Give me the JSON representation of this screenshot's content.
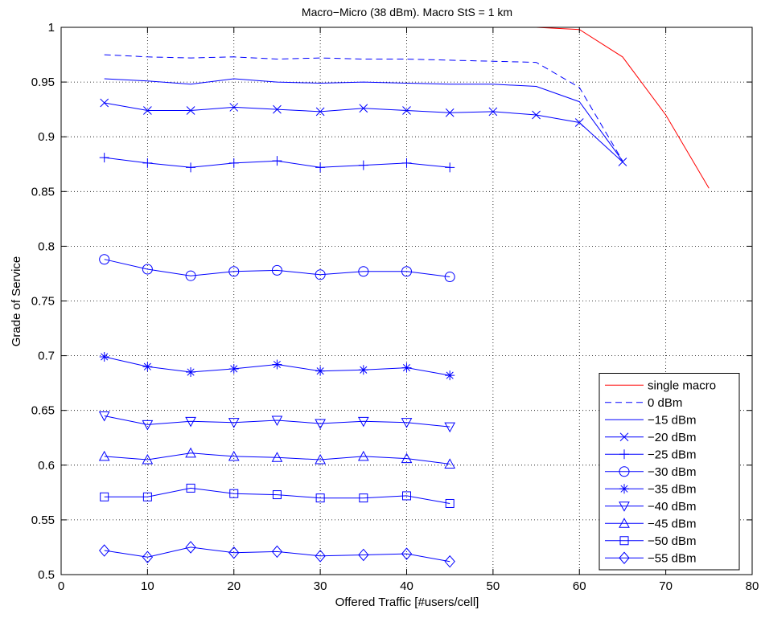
{
  "chart_data": {
    "type": "line",
    "title": "Macro−Micro (38 dBm). Macro StS = 1 km",
    "xlabel": "Offered Traffic [#users/cell]",
    "ylabel": "Grade of Service",
    "xlim": [
      0,
      80
    ],
    "ylim": [
      0.5,
      1
    ],
    "xticks": [
      0,
      10,
      20,
      30,
      40,
      50,
      60,
      70,
      80
    ],
    "yticks": [
      0.5,
      0.55,
      0.6,
      0.65,
      0.7,
      0.75,
      0.8,
      0.85,
      0.9,
      0.95,
      1
    ],
    "xtick_labels": [
      "0",
      "10",
      "20",
      "30",
      "40",
      "50",
      "60",
      "70",
      "80"
    ],
    "ytick_labels": [
      "0.5",
      "0.55",
      "0.6",
      "0.65",
      "0.7",
      "0.75",
      "0.8",
      "0.85",
      "0.9",
      "0.95",
      "1"
    ],
    "grid": true,
    "legend_position": "bottom-right",
    "series": [
      {
        "name": "single macro",
        "color": "#ff0000",
        "dash": "solid",
        "marker": "none",
        "x": [
          5,
          10,
          15,
          20,
          25,
          30,
          35,
          40,
          45,
          50,
          55,
          60,
          65,
          70,
          75
        ],
        "y": [
          1.0,
          1.0,
          1.0,
          1.0,
          1.0,
          1.0,
          1.0,
          1.0,
          1.0,
          1.0,
          1.0,
          0.998,
          0.973,
          0.92,
          0.853
        ]
      },
      {
        "name": "0 dBm",
        "color": "#0000ff",
        "dash": "dashed",
        "marker": "none",
        "x": [
          5,
          10,
          15,
          20,
          25,
          30,
          35,
          40,
          45,
          50,
          55,
          60,
          65
        ],
        "y": [
          0.975,
          0.973,
          0.972,
          0.973,
          0.971,
          0.972,
          0.971,
          0.971,
          0.97,
          0.969,
          0.968,
          0.945,
          0.878
        ]
      },
      {
        "name": "−15 dBm",
        "color": "#0000ff",
        "dash": "solid",
        "marker": "none",
        "x": [
          5,
          10,
          15,
          20,
          25,
          30,
          35,
          40,
          45,
          50,
          55,
          60,
          65
        ],
        "y": [
          0.953,
          0.951,
          0.948,
          0.953,
          0.95,
          0.949,
          0.95,
          0.949,
          0.948,
          0.948,
          0.946,
          0.932,
          0.878
        ]
      },
      {
        "name": "−20 dBm",
        "color": "#0000ff",
        "dash": "solid",
        "marker": "x",
        "x": [
          5,
          10,
          15,
          20,
          25,
          30,
          35,
          40,
          45,
          50,
          55,
          60,
          65
        ],
        "y": [
          0.931,
          0.924,
          0.924,
          0.927,
          0.925,
          0.923,
          0.926,
          0.924,
          0.922,
          0.923,
          0.92,
          0.913,
          0.877
        ]
      },
      {
        "name": "−25 dBm",
        "color": "#0000ff",
        "dash": "solid",
        "marker": "plus",
        "x": [
          5,
          10,
          15,
          20,
          25,
          30,
          35,
          40,
          45
        ],
        "y": [
          0.881,
          0.876,
          0.872,
          0.876,
          0.878,
          0.872,
          0.874,
          0.876,
          0.872
        ]
      },
      {
        "name": "−30 dBm",
        "color": "#0000ff",
        "dash": "solid",
        "marker": "circle",
        "x": [
          5,
          10,
          15,
          20,
          25,
          30,
          35,
          40,
          45
        ],
        "y": [
          0.788,
          0.779,
          0.773,
          0.777,
          0.778,
          0.774,
          0.777,
          0.777,
          0.772
        ]
      },
      {
        "name": "−35 dBm",
        "color": "#0000ff",
        "dash": "solid",
        "marker": "star",
        "x": [
          5,
          10,
          15,
          20,
          25,
          30,
          35,
          40,
          45
        ],
        "y": [
          0.699,
          0.69,
          0.685,
          0.688,
          0.692,
          0.686,
          0.687,
          0.689,
          0.682
        ]
      },
      {
        "name": "−40 dBm",
        "color": "#0000ff",
        "dash": "solid",
        "marker": "triangle-down",
        "x": [
          5,
          10,
          15,
          20,
          25,
          30,
          35,
          40,
          45
        ],
        "y": [
          0.645,
          0.637,
          0.64,
          0.639,
          0.641,
          0.638,
          0.64,
          0.639,
          0.635
        ]
      },
      {
        "name": "−45 dBm",
        "color": "#0000ff",
        "dash": "solid",
        "marker": "triangle-up",
        "x": [
          5,
          10,
          15,
          20,
          25,
          30,
          35,
          40,
          45
        ],
        "y": [
          0.608,
          0.605,
          0.611,
          0.608,
          0.607,
          0.605,
          0.608,
          0.606,
          0.601
        ]
      },
      {
        "name": "−50 dBm",
        "color": "#0000ff",
        "dash": "solid",
        "marker": "square",
        "x": [
          5,
          10,
          15,
          20,
          25,
          30,
          35,
          40,
          45
        ],
        "y": [
          0.571,
          0.571,
          0.579,
          0.574,
          0.573,
          0.57,
          0.57,
          0.572,
          0.565
        ]
      },
      {
        "name": "−55 dBm",
        "color": "#0000ff",
        "dash": "solid",
        "marker": "diamond",
        "x": [
          5,
          10,
          15,
          20,
          25,
          30,
          35,
          40,
          45
        ],
        "y": [
          0.522,
          0.516,
          0.525,
          0.52,
          0.521,
          0.517,
          0.518,
          0.519,
          0.512
        ]
      }
    ]
  }
}
